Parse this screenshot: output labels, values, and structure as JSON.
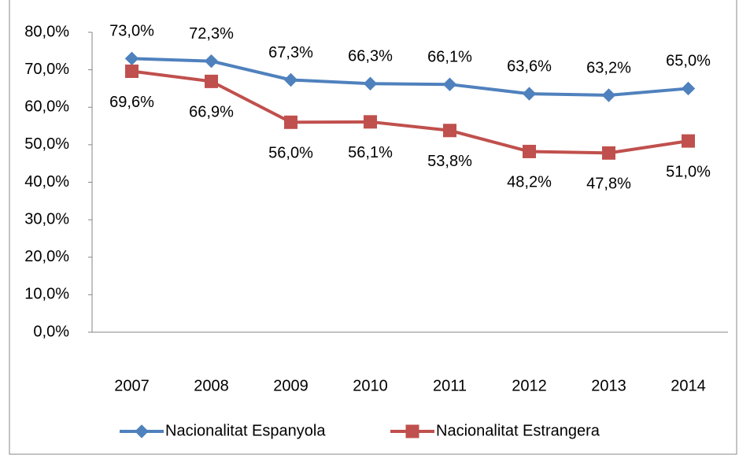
{
  "chart_data": {
    "type": "line",
    "categories": [
      "2007",
      "2008",
      "2009",
      "2010",
      "2011",
      "2012",
      "2013",
      "2014"
    ],
    "series": [
      {
        "name": "Nacionalitat Espanyola",
        "color": "#4f81bd",
        "marker": "diamond",
        "values": [
          73.0,
          72.3,
          67.3,
          66.3,
          66.1,
          63.6,
          63.2,
          65.0
        ],
        "value_labels": [
          "73,0%",
          "72,3%",
          "67,3%",
          "66,3%",
          "66,1%",
          "63,6%",
          "63,2%",
          "65,0%"
        ]
      },
      {
        "name": "Nacionalitat Estrangera",
        "color": "#c0504d",
        "marker": "square",
        "values": [
          69.6,
          66.9,
          56.0,
          56.1,
          53.8,
          48.2,
          47.8,
          51.0
        ],
        "value_labels": [
          "69,6%",
          "66,9%",
          "56,0%",
          "56,1%",
          "53,8%",
          "48,2%",
          "47,8%",
          "51,0%"
        ]
      }
    ],
    "ylim": [
      0,
      80
    ],
    "yticks": [
      {
        "value": 0,
        "label": "0,0%"
      },
      {
        "value": 10,
        "label": "10,0%"
      },
      {
        "value": 20,
        "label": "20,0%"
      },
      {
        "value": 30,
        "label": "30,0%"
      },
      {
        "value": 40,
        "label": "40,0%"
      },
      {
        "value": 50,
        "label": "50,0%"
      },
      {
        "value": 60,
        "label": "60,0%"
      },
      {
        "value": 70,
        "label": "70,0%"
      },
      {
        "value": 80,
        "label": "80,0%"
      }
    ],
    "grid": false,
    "legend": "bottom"
  }
}
